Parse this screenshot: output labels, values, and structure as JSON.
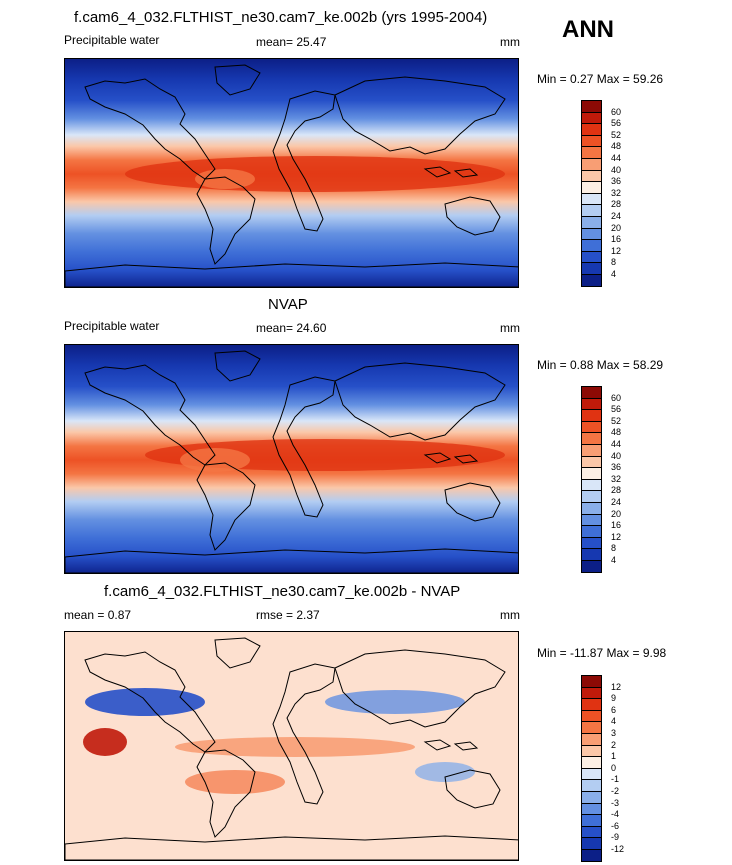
{
  "season": "ANN",
  "panels": [
    {
      "title": "f.cam6_4_032.FLTHIST_ne30.cam7_ke.002b (yrs 1995-2004)",
      "left_label": "Precipitable water",
      "center_label": "mean=  25.47",
      "units": "mm",
      "minmax": "Min =   0.27 Max =  59.26",
      "levels": [
        "60",
        "56",
        "52",
        "48",
        "44",
        "40",
        "36",
        "32",
        "28",
        "24",
        "20",
        "16",
        "12",
        "8",
        "4"
      ],
      "colors": [
        "#8c0a05",
        "#c01a0a",
        "#e03312",
        "#ed5225",
        "#f47543",
        "#f89e74",
        "#fbc7a8",
        "#fcefe4",
        "#d9e6f8",
        "#b3cdf2",
        "#8aafe9",
        "#6390e1",
        "#3f6fd7",
        "#2650c8",
        "#1638b0",
        "#0c1f87"
      ]
    },
    {
      "title": "NVAP",
      "left_label": "Precipitable water",
      "center_label": "mean=  24.60",
      "units": "mm",
      "minmax": "Min =   0.88 Max =  58.29",
      "levels": [
        "60",
        "56",
        "52",
        "48",
        "44",
        "40",
        "36",
        "32",
        "28",
        "24",
        "20",
        "16",
        "12",
        "8",
        "4"
      ],
      "colors": [
        "#8c0a05",
        "#c01a0a",
        "#e03312",
        "#ed5225",
        "#f47543",
        "#f89e74",
        "#fbc7a8",
        "#fcefe4",
        "#d9e6f8",
        "#b3cdf2",
        "#8aafe9",
        "#6390e1",
        "#3f6fd7",
        "#2650c8",
        "#1638b0",
        "#0c1f87"
      ]
    },
    {
      "title": "f.cam6_4_032.FLTHIST_ne30.cam7_ke.002b - NVAP",
      "left_label": "mean =   0.87",
      "center_label": "rmse =   2.37",
      "units": "mm",
      "minmax": "Min = -11.87 Max =   9.98",
      "levels": [
        "12",
        "9",
        "6",
        "4",
        "3",
        "2",
        "1",
        "0",
        "-1",
        "-2",
        "-3",
        "-4",
        "-6",
        "-9",
        "-12"
      ],
      "colors": [
        "#8c0a05",
        "#c01a0a",
        "#e03312",
        "#ed5225",
        "#f47543",
        "#f89e74",
        "#fbc7a8",
        "#fcefe4",
        "#d9e6f8",
        "#b3cdf2",
        "#8aafe9",
        "#6390e1",
        "#3f6fd7",
        "#2650c8",
        "#1638b0",
        "#0c1f87"
      ]
    }
  ]
}
